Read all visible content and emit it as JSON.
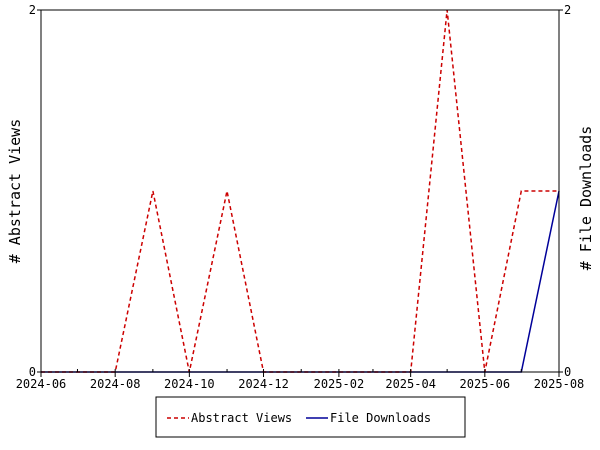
{
  "chart_data": {
    "type": "line",
    "xlim": [
      "2024-06-01",
      "2025-08-01"
    ],
    "x_ticks": [
      "2024-06",
      "2024-08",
      "2024-10",
      "2024-12",
      "2025-02",
      "2025-04",
      "2025-06",
      "2025-08"
    ],
    "left_axis": {
      "label": "# Abstract Views",
      "ylim": [
        0,
        2
      ],
      "ticks": [
        "0",
        "2"
      ]
    },
    "right_axis": {
      "label": "# File Downloads",
      "ylim": [
        0,
        2
      ],
      "ticks": [
        "0",
        "2"
      ]
    },
    "grid": false,
    "legend_position": "bottom",
    "series": [
      {
        "name": "Abstract Views",
        "axis": "left",
        "color": "#cc0000",
        "style": "dashed",
        "points": [
          [
            "2024-06-01",
            0
          ],
          [
            "2024-07-01",
            0
          ],
          [
            "2024-08-01",
            0
          ],
          [
            "2024-09-01",
            1
          ],
          [
            "2024-10-01",
            0
          ],
          [
            "2024-11-01",
            1
          ],
          [
            "2024-12-01",
            0
          ],
          [
            "2025-01-01",
            0
          ],
          [
            "2025-02-01",
            0
          ],
          [
            "2025-03-01",
            0
          ],
          [
            "2025-04-01",
            0
          ],
          [
            "2025-05-01",
            2
          ],
          [
            "2025-06-01",
            0
          ],
          [
            "2025-07-01",
            1
          ],
          [
            "2025-08-01",
            1
          ]
        ]
      },
      {
        "name": "File Downloads",
        "axis": "right",
        "color": "#000099",
        "style": "solid",
        "points": [
          [
            "2024-06-01",
            0
          ],
          [
            "2024-07-01",
            0
          ],
          [
            "2024-08-01",
            0
          ],
          [
            "2024-09-01",
            0
          ],
          [
            "2024-10-01",
            0
          ],
          [
            "2024-11-01",
            0
          ],
          [
            "2024-12-01",
            0
          ],
          [
            "2025-01-01",
            0
          ],
          [
            "2025-02-01",
            0
          ],
          [
            "2025-03-01",
            0
          ],
          [
            "2025-04-01",
            0
          ],
          [
            "2025-05-01",
            0
          ],
          [
            "2025-06-01",
            0
          ],
          [
            "2025-07-01",
            0
          ],
          [
            "2025-08-01",
            1
          ]
        ]
      }
    ]
  }
}
